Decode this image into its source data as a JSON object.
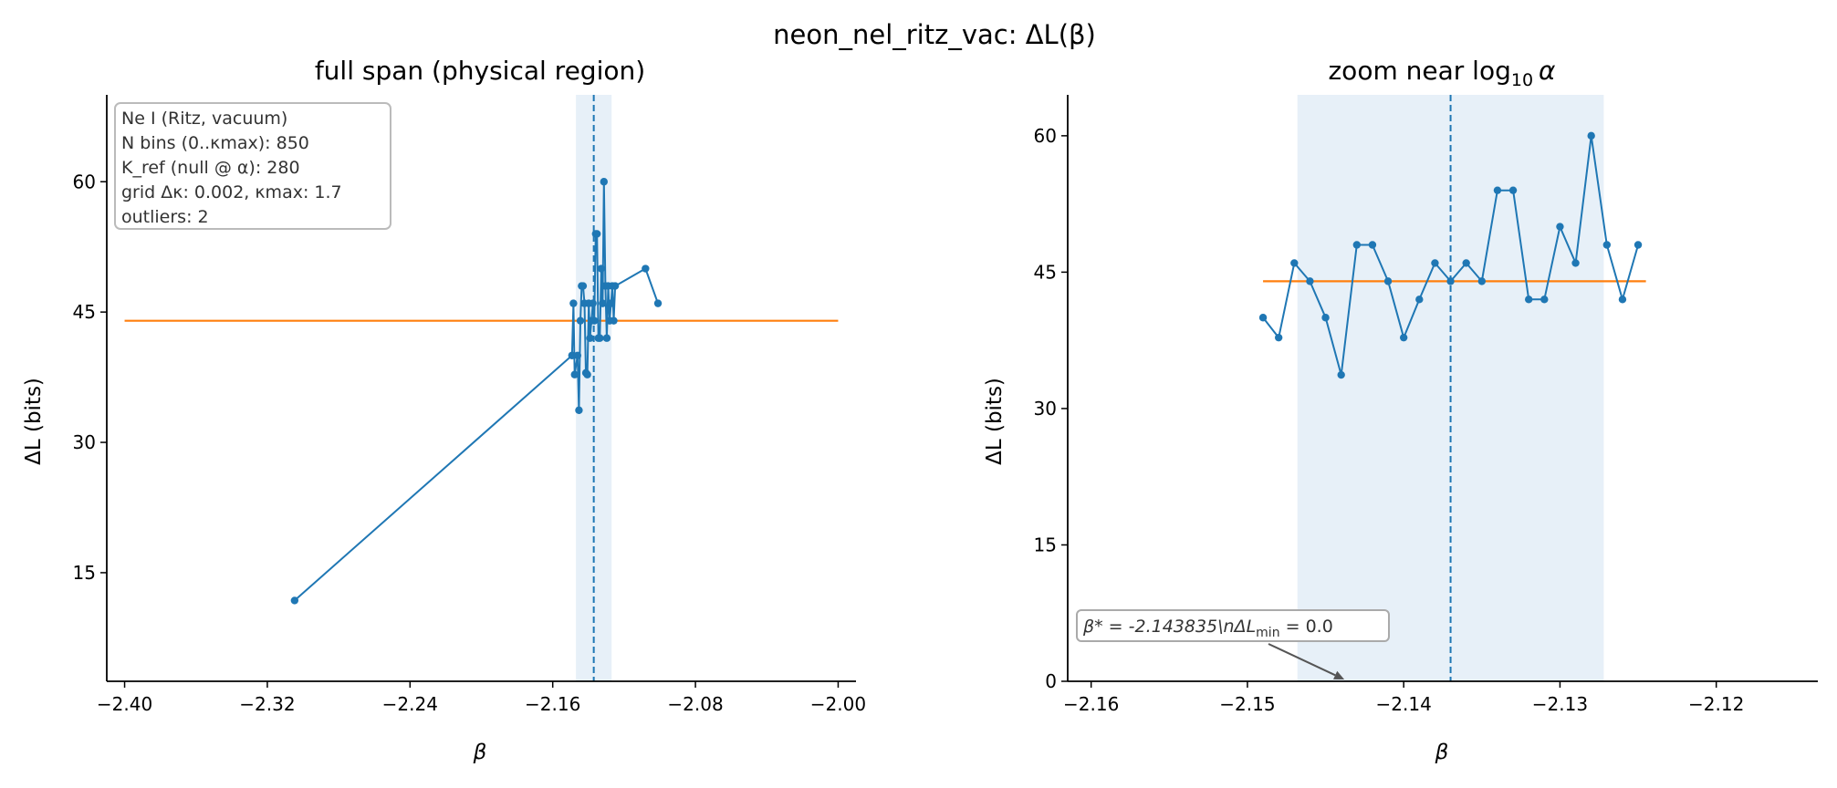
{
  "figure": {
    "title": "neon_nel_ritz_vac: ΔL(β)"
  },
  "colors": {
    "series": "#1f77b4",
    "reference": "#ff7f0e",
    "band": "#dde9f5",
    "annotation_border": "#aaaaaa",
    "arrow": "#555555"
  },
  "chart_data": [
    {
      "type": "line",
      "title": "full span (physical region)",
      "xlabel": "β",
      "ylabel": "ΔL (bits)",
      "xlim": [
        -2.41,
        -1.99
      ],
      "ylim": [
        2.5,
        70
      ],
      "xticks": [
        -2.4,
        -2.32,
        -2.24,
        -2.16,
        -2.08,
        -2.0
      ],
      "xtick_labels": [
        "−2.40",
        "−2.32",
        "−2.24",
        "−2.16",
        "−2.08",
        "−2.00"
      ],
      "yticks": [
        15,
        30,
        45,
        60
      ],
      "ytick_labels": [
        "15",
        "30",
        "45",
        "60"
      ],
      "series": [
        {
          "x": [
            -2.3047,
            -2.1492,
            -2.1484,
            -2.1477,
            -2.1461,
            -2.1453,
            -2.1445,
            -2.1438,
            -2.143,
            -2.1422,
            -2.1414,
            -2.1406,
            -2.1398,
            -2.1391,
            -2.1383,
            -2.1375,
            -2.1367,
            -2.1359,
            -2.1352,
            -2.1344,
            -2.1336,
            -2.1328,
            -2.132,
            -2.1313,
            -2.1305,
            -2.1297,
            -2.1289,
            -2.1281,
            -2.1273,
            -2.1266,
            -2.1258,
            -2.125,
            -2.108,
            -2.101
          ],
          "y": [
            11.8,
            40,
            46,
            37.8,
            40,
            33.7,
            44,
            48,
            48,
            46,
            38,
            37.8,
            46,
            42,
            44,
            46,
            44,
            54,
            54,
            42,
            42,
            50,
            46,
            60,
            48,
            42,
            48,
            44,
            46,
            48,
            44,
            48,
            50,
            46
          ]
        }
      ],
      "reference_line": {
        "y": 44,
        "x": [
          -2.4,
          -2.0
        ]
      },
      "vline": {
        "x": -2.137
      },
      "band": {
        "x": [
          -2.147,
          -2.127
        ]
      },
      "info_box": [
        "Ne I (Ritz, vacuum)",
        "N bins (0..κmax): 850",
        "K_ref (null @ α): 280",
        "grid Δκ: 0.002, κmax: 1.7",
        "outliers: 2"
      ]
    },
    {
      "type": "line",
      "title_main": "zoom near log",
      "title_sub": "10",
      "title_tail": "α",
      "xlabel": "β",
      "ylabel": "ΔL (bits)",
      "xlim": [
        -2.1615,
        -2.1135
      ],
      "ylim": [
        0,
        64.5
      ],
      "xticks": [
        -2.16,
        -2.15,
        -2.14,
        -2.13,
        -2.12
      ],
      "xtick_labels": [
        "−2.16",
        "−2.15",
        "−2.14",
        "−2.13",
        "−2.12"
      ],
      "yticks": [
        0,
        15,
        30,
        45,
        60
      ],
      "ytick_labels": [
        "0",
        "15",
        "30",
        "45",
        "60"
      ],
      "series": [
        {
          "x": [
            -2.149,
            -2.148,
            -2.147,
            -2.146,
            -2.145,
            -2.144,
            -2.143,
            -2.142,
            -2.141,
            -2.14,
            -2.139,
            -2.138,
            -2.137,
            -2.136,
            -2.135,
            -2.134,
            -2.133,
            -2.132,
            -2.131,
            -2.13,
            -2.129,
            -2.128,
            -2.127,
            -2.126,
            -2.125
          ],
          "y": [
            40,
            37.8,
            46,
            44,
            40,
            33.7,
            48,
            48,
            44,
            37.8,
            42,
            46,
            44,
            46,
            44,
            54,
            54,
            42,
            42,
            50,
            46,
            60,
            48,
            42,
            48
          ]
        }
      ],
      "reference_line": {
        "y": 44,
        "x": [
          -2.149,
          -2.1245
        ]
      },
      "vline": {
        "x": -2.137
      },
      "band": {
        "x": [
          -2.1468,
          -2.1272
        ]
      },
      "annotation": {
        "text_a": "β* = -2.143835\\nΔL",
        "text_sub": "min",
        "text_b": " = 0.0",
        "arrow_to": {
          "x": -2.1438,
          "y": 0
        }
      }
    }
  ]
}
